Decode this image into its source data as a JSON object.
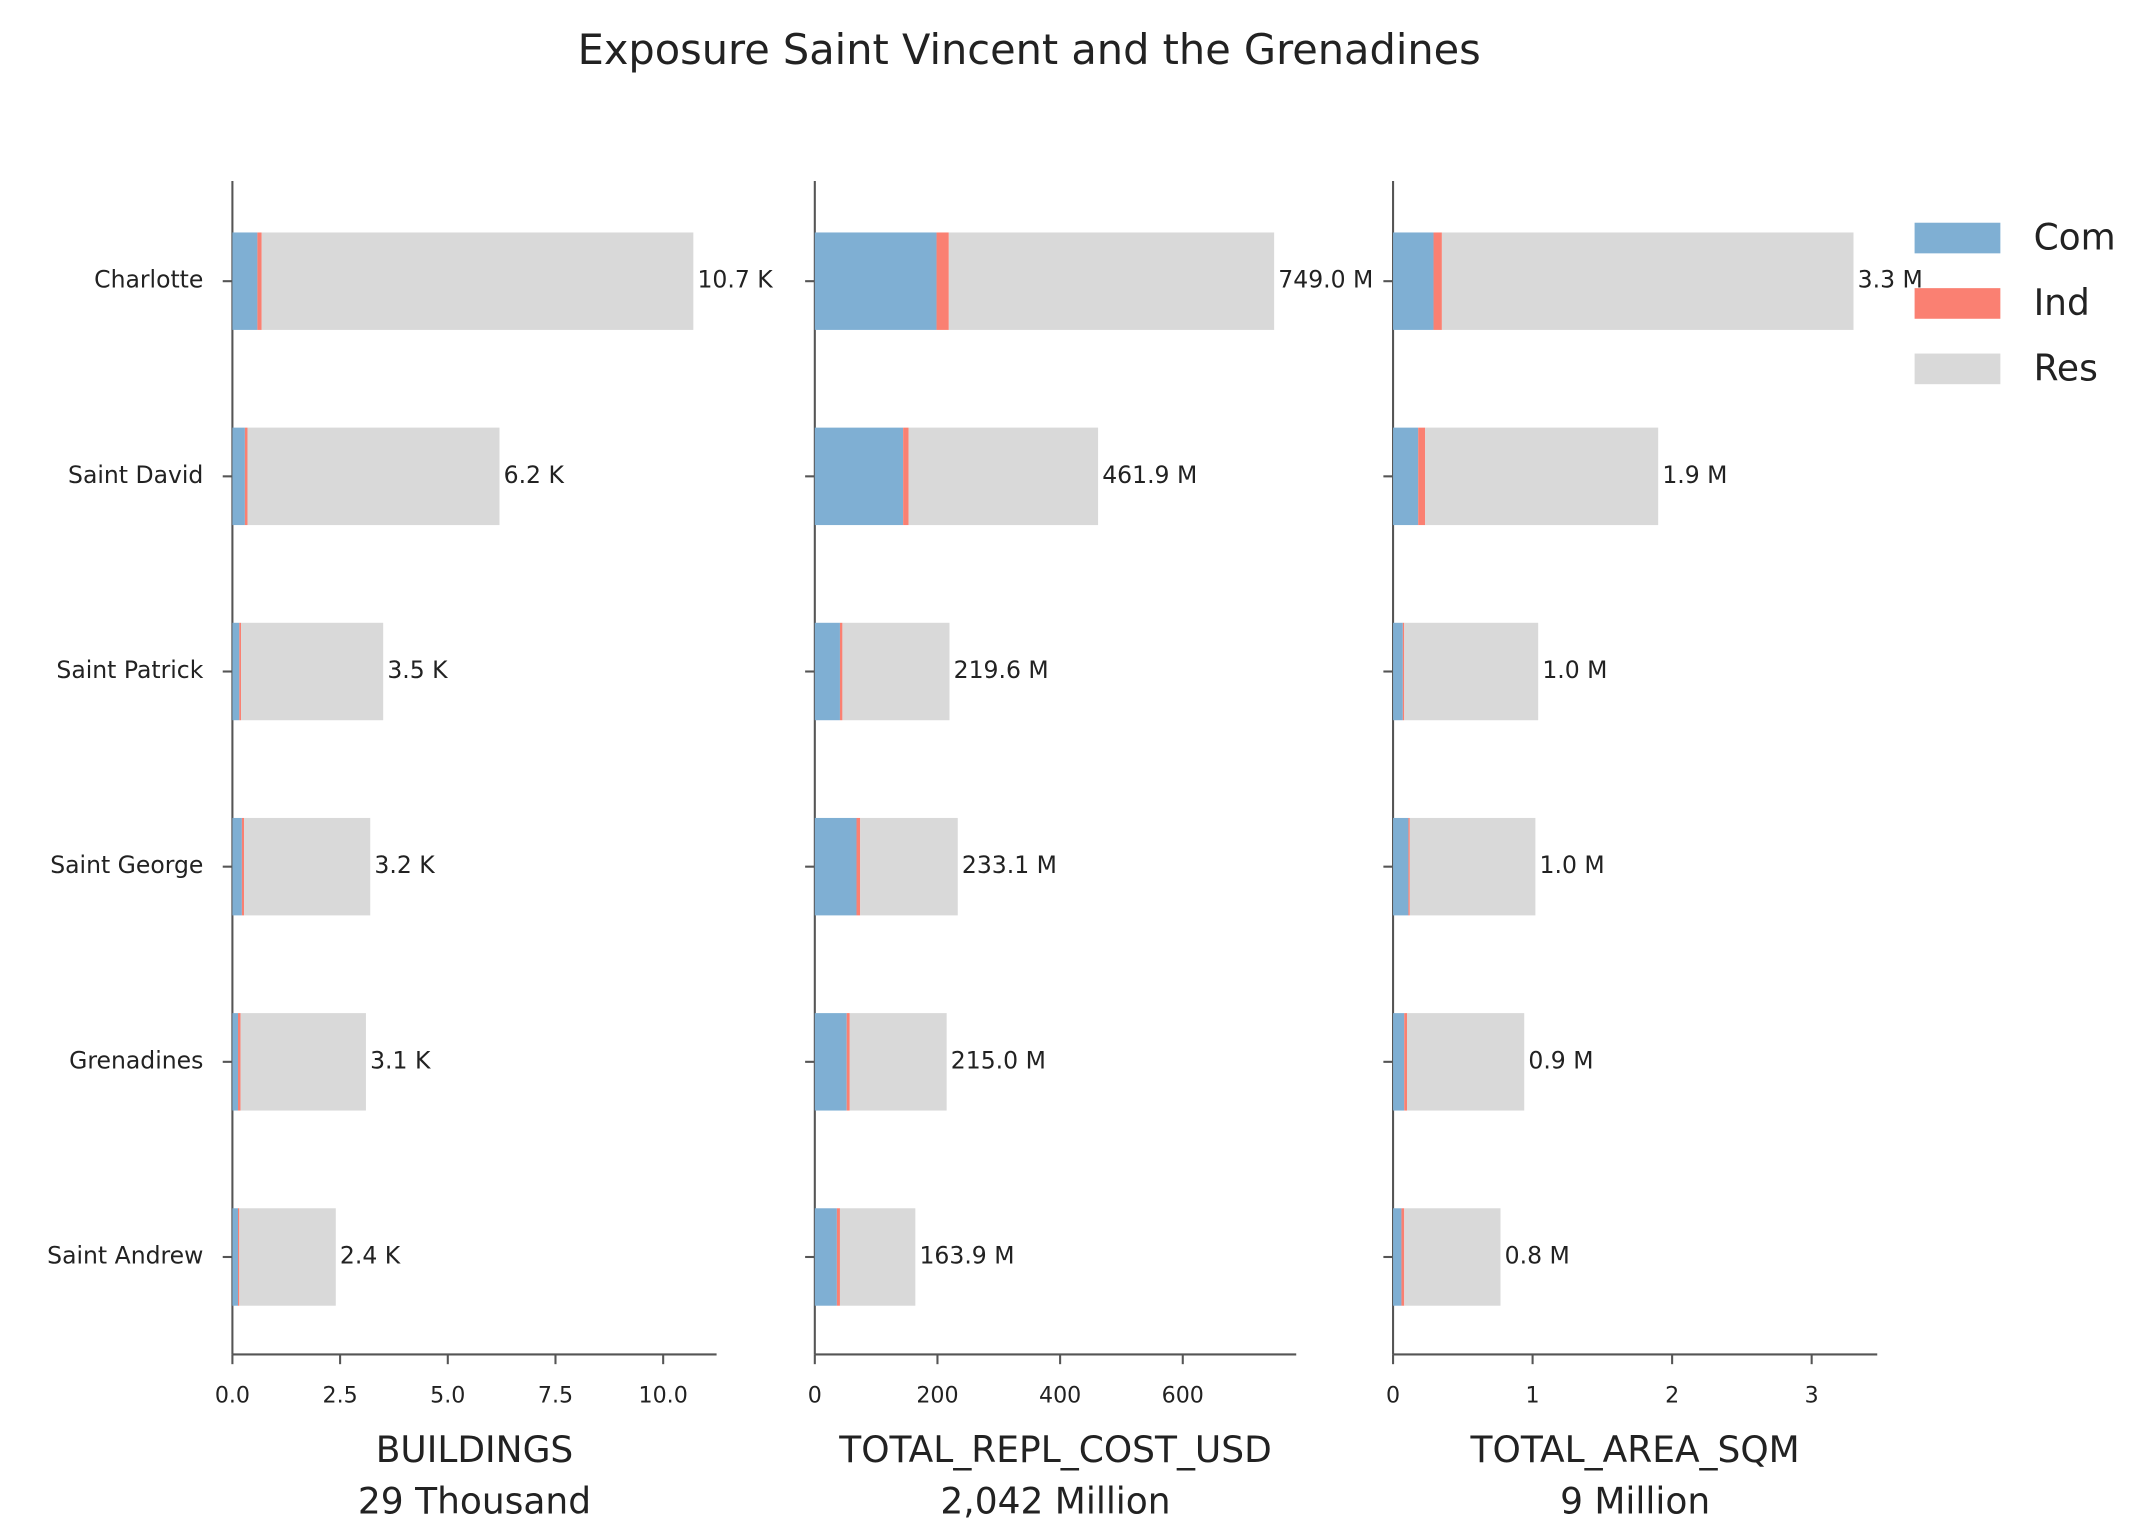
{
  "title": "Exposure Saint Vincent and the Grenadines",
  "legend": {
    "position": "upper right"
  },
  "chart_data": [
    {
      "type": "bar",
      "orientation": "horizontal",
      "stacked": true,
      "xlabel": "BUILDINGS",
      "xsubtitle": "29 Thousand",
      "categories": [
        "Charlotte",
        "Saint David",
        "Saint Patrick",
        "Saint George",
        "Grenadines",
        "Saint Andrew"
      ],
      "series": [
        {
          "name": "Com",
          "color": "#7fafd3",
          "values": [
            0.58,
            0.29,
            0.16,
            0.22,
            0.13,
            0.13
          ]
        },
        {
          "name": "Ind",
          "color": "#fa8072",
          "values": [
            0.1,
            0.06,
            0.04,
            0.05,
            0.06,
            0.03
          ]
        },
        {
          "name": "Res",
          "color": "#d9d9d9",
          "values": [
            10.02,
            5.85,
            3.3,
            2.93,
            2.91,
            2.24
          ]
        }
      ],
      "totals": {
        "values": [
          10.7,
          6.2,
          3.5,
          3.2,
          3.1,
          2.4
        ],
        "value_labels": [
          "10.7 K",
          "6.2 K",
          "3.5 K",
          "3.2 K",
          "3.1 K",
          "2.4 K"
        ]
      },
      "xlim": [
        0,
        11.24
      ],
      "xticks": [
        {
          "value": 0,
          "label": "0.0"
        },
        {
          "value": 2.5,
          "label": "2.5"
        },
        {
          "value": 5,
          "label": "5.0"
        },
        {
          "value": 7.5,
          "label": "7.5"
        },
        {
          "value": 10,
          "label": "10.0"
        }
      ]
    },
    {
      "type": "bar",
      "orientation": "horizontal",
      "stacked": true,
      "xlabel": "TOTAL_REPL_COST_USD",
      "xsubtitle": "2,042 Million",
      "series": [
        {
          "color": "#7fafd3",
          "values": [
            198.5,
            144,
            41,
            68,
            52,
            36
          ]
        },
        {
          "color": "#fa8072",
          "values": [
            20,
            9,
            4,
            6,
            5,
            5
          ]
        },
        {
          "color": "#d9d9d9",
          "values": [
            530.5,
            308.9,
            174.6,
            159.1,
            158,
            122.9
          ]
        }
      ],
      "totals": {
        "values": [
          749.0,
          461.9,
          219.6,
          233.1,
          215.0,
          163.9
        ],
        "value_labels": [
          "749.0 M",
          "461.9 M",
          "219.6 M",
          "233.1 M",
          "215.0 M",
          "163.9 M"
        ]
      },
      "xlim": [
        0,
        785
      ],
      "xticks": [
        0,
        200,
        400,
        600
      ]
    },
    {
      "type": "bar",
      "orientation": "horizontal",
      "stacked": true,
      "xlabel": "TOTAL_AREA_SQM",
      "xsubtitle": "9 Million",
      "series": [
        {
          "color": "#7fafd3",
          "values": [
            0.29,
            0.18,
            0.07,
            0.11,
            0.08,
            0.06
          ]
        },
        {
          "color": "#fa8072",
          "values": [
            0.06,
            0.05,
            0.01,
            0.01,
            0.02,
            0.02
          ]
        },
        {
          "color": "#d9d9d9",
          "values": [
            2.95,
            1.67,
            0.96,
            0.9,
            0.84,
            0.69
          ]
        }
      ],
      "totals": {
        "values": [
          3.3,
          1.9,
          1.04,
          1.02,
          0.94,
          0.77
        ],
        "value_labels": [
          "3.3 M",
          "1.9 M",
          "1.0 M",
          "1.0 M",
          "0.9 M",
          "0.8 M"
        ]
      },
      "xlim": [
        0,
        3.47
      ],
      "xticks": [
        0,
        1,
        2,
        3
      ]
    }
  ]
}
